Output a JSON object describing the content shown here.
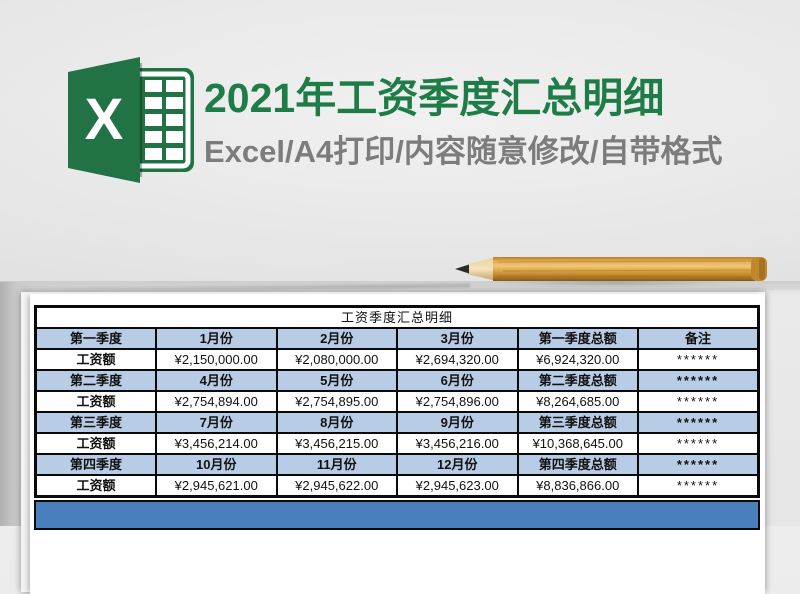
{
  "colors": {
    "brand_green": "#217346",
    "title_green": "#1e7c47",
    "subtitle_gray": "#7c7c7c",
    "header_blue": "#b9cce6",
    "footer_blue": "#4a7ebc",
    "total_red": "#f40000",
    "border_black": "#0a0a0a"
  },
  "hero": {
    "title": "2021年工资季度汇总明细",
    "subtitle": "Excel/A4打印/内容随意修改/自带格式",
    "logo_letter": "X"
  },
  "paper": {
    "table": {
      "title": "工资季度汇总明细",
      "rows": [
        {
          "type": "quarter",
          "cells": [
            "第一季度",
            "1月份",
            "2月份",
            "3月份",
            "第一季度总额",
            "备注"
          ]
        },
        {
          "type": "salary",
          "cells": [
            "工资额",
            "¥2,150,000.00",
            "¥2,080,000.00",
            "¥2,694,320.00",
            "¥6,924,320.00",
            "******"
          ]
        },
        {
          "type": "quarter",
          "cells": [
            "第二季度",
            "4月份",
            "5月份",
            "6月份",
            "第二季度总额",
            "******"
          ]
        },
        {
          "type": "salary",
          "cells": [
            "工资额",
            "¥2,754,894.00",
            "¥2,754,895.00",
            "¥2,754,896.00",
            "¥8,264,685.00",
            "******"
          ]
        },
        {
          "type": "quarter",
          "cells": [
            "第三季度",
            "7月份",
            "8月份",
            "9月份",
            "第三季度总额",
            "******"
          ]
        },
        {
          "type": "salary",
          "cells": [
            "工资额",
            "¥3,456,214.00",
            "¥3,456,215.00",
            "¥3,456,216.00",
            "¥10,368,645.00",
            "******"
          ]
        },
        {
          "type": "quarter",
          "cells": [
            "第四季度",
            "10月份",
            "11月份",
            "12月份",
            "第四季度总额",
            "******"
          ]
        },
        {
          "type": "salary",
          "cells": [
            "工资额",
            "¥2,945,621.00",
            "¥2,945,622.00",
            "¥2,945,623.00",
            "¥8,836,866.00",
            "******"
          ]
        }
      ]
    }
  }
}
